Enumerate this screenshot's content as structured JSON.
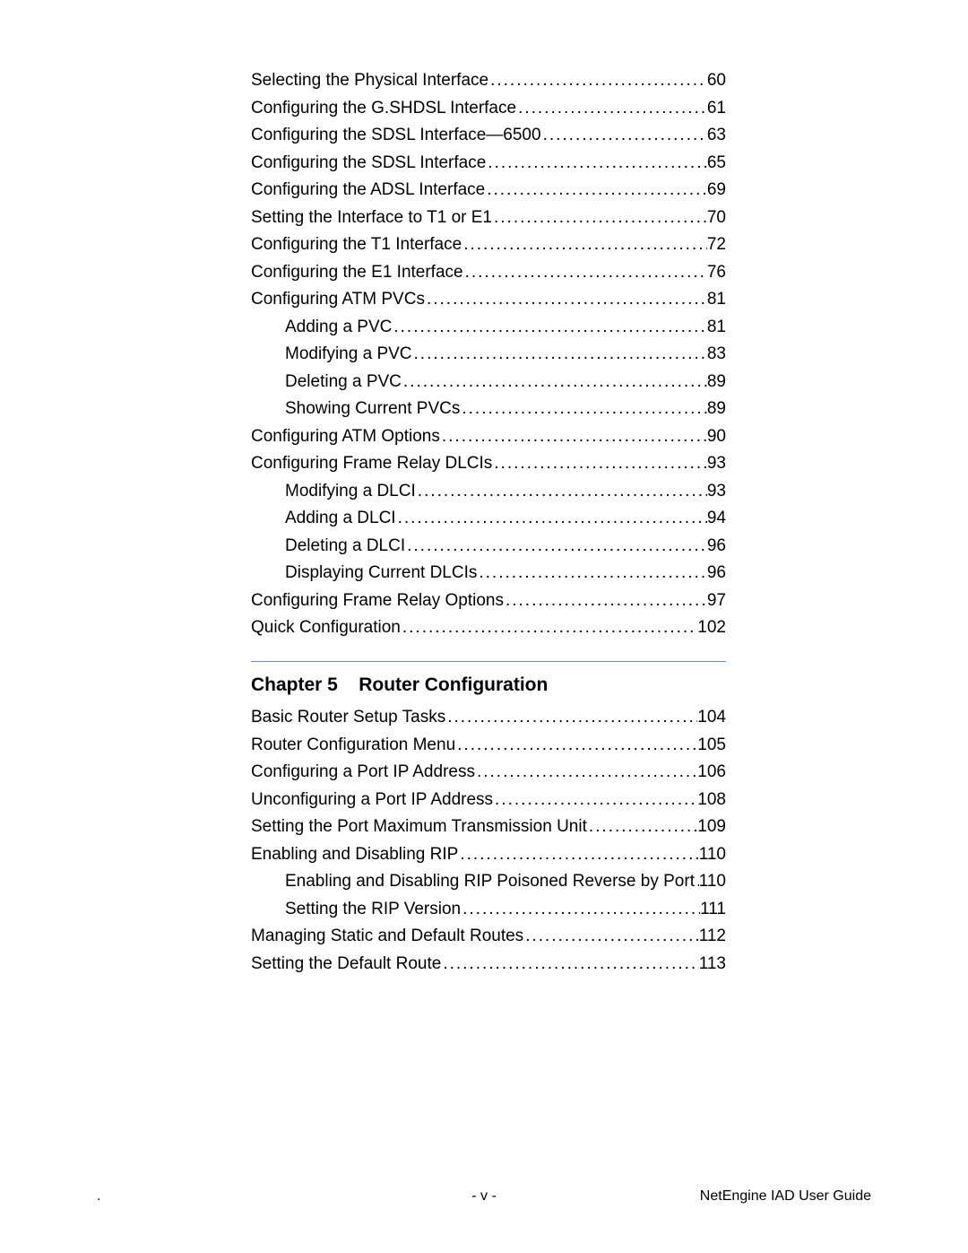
{
  "toc_section_a": [
    {
      "level": 1,
      "title": "Selecting the Physical Interface",
      "page": "60"
    },
    {
      "level": 1,
      "title": "Configuring the G.SHDSL Interface",
      "page": "61"
    },
    {
      "level": 1,
      "title": "Configuring the SDSL Interface—6500",
      "page": "63"
    },
    {
      "level": 1,
      "title": "Configuring the SDSL Interface",
      "page": "65"
    },
    {
      "level": 1,
      "title": "Configuring the ADSL Interface",
      "page": "69"
    },
    {
      "level": 1,
      "title": "Setting the Interface to T1 or E1",
      "page": "70"
    },
    {
      "level": 1,
      "title": "Configuring the T1 Interface",
      "page": "72"
    },
    {
      "level": 1,
      "title": "Configuring the E1 Interface",
      "page": "76"
    },
    {
      "level": 1,
      "title": "Configuring ATM PVCs",
      "page": "81"
    },
    {
      "level": 2,
      "title": "Adding a PVC",
      "page": "81"
    },
    {
      "level": 2,
      "title": "Modifying a PVC",
      "page": "83"
    },
    {
      "level": 2,
      "title": "Deleting a PVC",
      "page": "89"
    },
    {
      "level": 2,
      "title": "Showing Current PVCs",
      "page": "89"
    },
    {
      "level": 1,
      "title": "Configuring ATM Options",
      "page": "90"
    },
    {
      "level": 1,
      "title": "Configuring Frame Relay DLCIs",
      "page": "93"
    },
    {
      "level": 2,
      "title": "Modifying a DLCI",
      "page": "93"
    },
    {
      "level": 2,
      "title": "Adding a DLCI",
      "page": "94"
    },
    {
      "level": 2,
      "title": "Deleting a DLCI",
      "page": "96"
    },
    {
      "level": 2,
      "title": "Displaying Current DLCIs",
      "page": "96"
    },
    {
      "level": 1,
      "title": "Configuring Frame Relay Options",
      "page": "97"
    },
    {
      "level": 1,
      "title": "Quick Configuration",
      "page": "102"
    }
  ],
  "chapter_heading": "Chapter 5    Router Configuration",
  "toc_section_b": [
    {
      "level": 1,
      "title": "Basic Router Setup Tasks",
      "page": "104"
    },
    {
      "level": 1,
      "title": "Router Configuration Menu",
      "page": "105"
    },
    {
      "level": 1,
      "title": "Configuring a Port IP Address",
      "page": "106"
    },
    {
      "level": 1,
      "title": "Unconfiguring a Port IP Address",
      "page": "108"
    },
    {
      "level": 1,
      "title": "Setting the Port Maximum Transmission Unit",
      "page": "109"
    },
    {
      "level": 1,
      "title": "Enabling and Disabling RIP",
      "page": "110"
    },
    {
      "level": 2,
      "title": "Enabling and Disabling RIP Poisoned Reverse by Port",
      "page": "110"
    },
    {
      "level": 2,
      "title": "Setting the RIP Version",
      "page": "111"
    },
    {
      "level": 1,
      "title": "Managing Static and Default Routes",
      "page": "112"
    },
    {
      "level": 1,
      "title": "Setting the Default Route",
      "page": "113"
    }
  ],
  "footer": {
    "left_dot": ".",
    "center": "- v -",
    "right": "NetEngine IAD User Guide"
  }
}
